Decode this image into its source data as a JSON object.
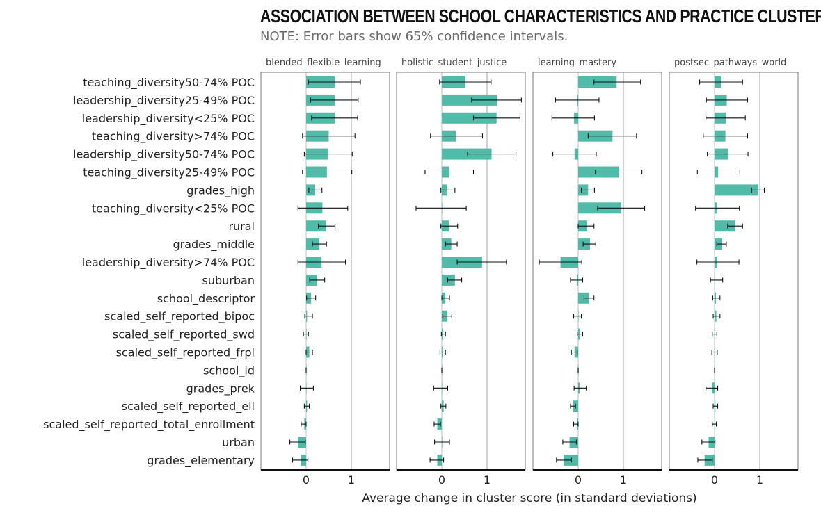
{
  "chart_data": {
    "type": "bar",
    "title": "ASSOCIATION BETWEEN SCHOOL CHARACTERISTICS AND PRACTICE CLUSTERS",
    "subtitle": "NOTE: Error bars show 65% confidence intervals.",
    "xlabel": "Average change in cluster score (in standard deviations)",
    "xlim": [
      -1.0,
      1.85
    ],
    "xticks": [
      0,
      1
    ],
    "bar_color": "#50bba8",
    "refline_color": "#bfbfbf",
    "categories": [
      "teaching_diversity50-74% POC",
      "leadership_diversity25-49% POC",
      "leadership_diversity<25% POC",
      "teaching_diversity>74% POC",
      "leadership_diversity50-74% POC",
      "teaching_diversity25-49% POC",
      "grades_high",
      "teaching_diversity<25% POC",
      "rural",
      "grades_middle",
      "leadership_diversity>74% POC",
      "suburban",
      "school_descriptor",
      "scaled_self_reported_bipoc",
      "scaled_self_reported_swd",
      "scaled_self_reported_frpl",
      "school_id",
      "grades_prek",
      "scaled_self_reported_ell",
      "scaled_self_reported_total_enrollment",
      "urban",
      "grades_elementary"
    ],
    "panels": [
      {
        "name": "blended_flexible_learning",
        "values": [
          0.63,
          0.63,
          0.63,
          0.5,
          0.49,
          0.46,
          0.2,
          0.36,
          0.44,
          0.29,
          0.34,
          0.24,
          0.11,
          0.02,
          0.01,
          0.07,
          0.0,
          0.0,
          0.02,
          -0.04,
          -0.18,
          -0.12
        ],
        "lower": [
          0.05,
          0.1,
          0.12,
          -0.08,
          -0.04,
          -0.08,
          0.06,
          -0.18,
          0.27,
          0.14,
          -0.18,
          0.08,
          0.01,
          -0.03,
          -0.06,
          0.0,
          0.0,
          -0.13,
          -0.04,
          -0.11,
          -0.36,
          -0.3
        ],
        "upper": [
          1.2,
          1.15,
          1.14,
          1.08,
          1.02,
          1.01,
          0.35,
          0.92,
          0.64,
          0.45,
          0.87,
          0.41,
          0.21,
          0.14,
          0.05,
          0.14,
          0.0,
          0.16,
          0.07,
          0.0,
          -0.02,
          0.04
        ]
      },
      {
        "name": "holistic_student_justice",
        "values": [
          0.52,
          1.22,
          1.21,
          0.31,
          1.1,
          0.16,
          0.11,
          0.0,
          0.16,
          0.21,
          0.89,
          0.29,
          0.08,
          0.12,
          0.03,
          0.02,
          0.0,
          0.0,
          0.04,
          -0.1,
          0.0,
          -0.1
        ],
        "lower": [
          -0.05,
          0.66,
          0.7,
          -0.25,
          0.57,
          -0.37,
          -0.02,
          -0.57,
          -0.02,
          0.08,
          0.34,
          0.13,
          0.0,
          0.02,
          -0.01,
          -0.04,
          0.0,
          -0.18,
          -0.02,
          -0.17,
          -0.16,
          -0.26
        ],
        "upper": [
          1.09,
          1.76,
          1.73,
          0.9,
          1.64,
          0.7,
          0.29,
          0.54,
          0.35,
          0.34,
          1.43,
          0.44,
          0.17,
          0.22,
          0.08,
          0.08,
          0.0,
          0.13,
          0.09,
          -0.03,
          0.17,
          0.04
        ]
      },
      {
        "name": "learning_mastery",
        "values": [
          0.85,
          -0.02,
          -0.09,
          0.76,
          -0.08,
          0.9,
          0.22,
          0.95,
          0.19,
          0.26,
          -0.39,
          -0.03,
          0.24,
          0.0,
          0.04,
          -0.08,
          0.0,
          0.03,
          -0.11,
          -0.03,
          -0.19,
          -0.32
        ],
        "lower": [
          0.35,
          -0.5,
          -0.58,
          0.22,
          -0.56,
          0.38,
          0.07,
          0.43,
          0.0,
          0.11,
          -0.86,
          -0.17,
          0.13,
          -0.1,
          -0.02,
          -0.15,
          0.0,
          -0.09,
          -0.17,
          -0.1,
          -0.34,
          -0.48
        ],
        "upper": [
          1.38,
          0.46,
          0.36,
          1.29,
          0.4,
          1.41,
          0.36,
          1.47,
          0.35,
          0.39,
          0.08,
          0.1,
          0.35,
          0.07,
          0.1,
          -0.02,
          0.0,
          0.18,
          -0.06,
          0.0,
          -0.04,
          -0.15
        ]
      },
      {
        "name": "postsec_pathways_world",
        "values": [
          0.14,
          0.27,
          0.25,
          0.24,
          0.3,
          0.08,
          0.97,
          0.05,
          0.45,
          0.16,
          0.05,
          0.0,
          0.03,
          0.04,
          0.0,
          0.0,
          0.0,
          -0.06,
          0.02,
          0.0,
          -0.13,
          -0.22
        ],
        "lower": [
          -0.33,
          -0.18,
          -0.19,
          -0.25,
          -0.16,
          -0.38,
          0.82,
          -0.42,
          0.29,
          0.05,
          -0.39,
          -0.09,
          -0.04,
          -0.03,
          -0.05,
          -0.06,
          0.0,
          -0.19,
          -0.03,
          -0.05,
          -0.28,
          -0.37
        ],
        "upper": [
          0.62,
          0.73,
          0.68,
          0.73,
          0.74,
          0.56,
          1.1,
          0.55,
          0.62,
          0.26,
          0.54,
          0.18,
          0.12,
          0.12,
          0.05,
          0.06,
          0.0,
          0.07,
          0.07,
          0.04,
          0.01,
          -0.05
        ]
      }
    ]
  }
}
